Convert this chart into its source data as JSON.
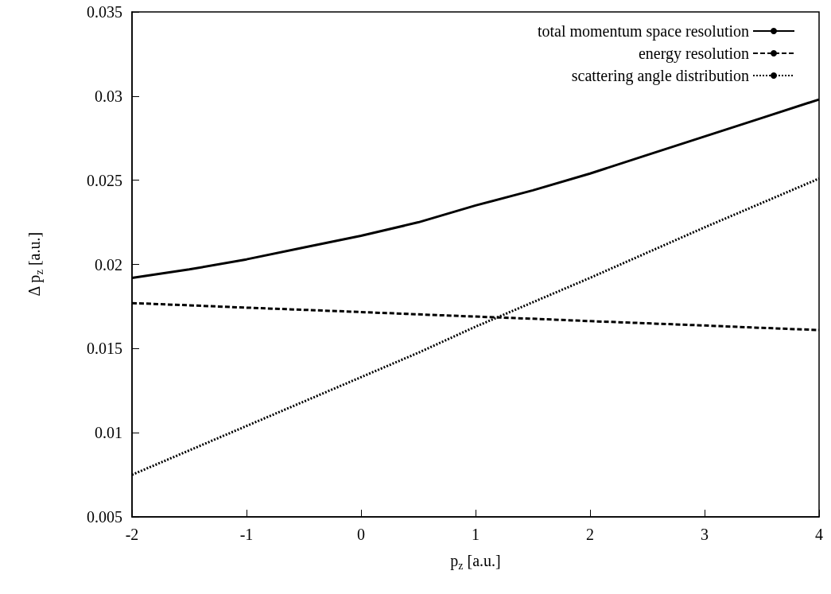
{
  "chart_data": {
    "type": "line",
    "xlabel": "p$_{z}$ [a.u.]",
    "ylabel": "Δ p$_{z}$ [a.u.]",
    "xlim": [
      -2,
      4
    ],
    "xticks": [
      -2,
      -1,
      0,
      1,
      2,
      3,
      4
    ],
    "ylim": [
      0.005,
      0.035
    ],
    "yticks": [
      0.005,
      0.01,
      0.015,
      0.02,
      0.025,
      0.03,
      0.035
    ],
    "grid": false,
    "legend": "top right",
    "marker": "none",
    "x": [
      -2,
      -1.5,
      -1,
      -0.5,
      0,
      0.5,
      1,
      1.5,
      2,
      2.5,
      3,
      3.5,
      4
    ],
    "series": [
      {
        "name": "total momentum space resolution",
        "color": "#000000",
        "line_style": "solid",
        "values": [
          0.0192,
          0.0197,
          0.0203,
          0.021,
          0.0217,
          0.0225,
          0.0235,
          0.0244,
          0.0254,
          0.0265,
          0.0276,
          0.0287,
          0.0298
        ]
      },
      {
        "name": "energy resolution",
        "color": "#000000",
        "line_style": "dashed",
        "values": [
          0.0177,
          0.01757,
          0.01743,
          0.0173,
          0.01717,
          0.01703,
          0.0169,
          0.01677,
          0.01663,
          0.0165,
          0.01637,
          0.01623,
          0.0161
        ]
      },
      {
        "name": "scattering angle distribution",
        "color": "#000000",
        "line_style": "dotted",
        "values": [
          0.0075,
          0.00895,
          0.0104,
          0.01185,
          0.0133,
          0.01475,
          0.0163,
          0.01775,
          0.0192,
          0.0207,
          0.0222,
          0.02365,
          0.0251
        ]
      }
    ]
  }
}
